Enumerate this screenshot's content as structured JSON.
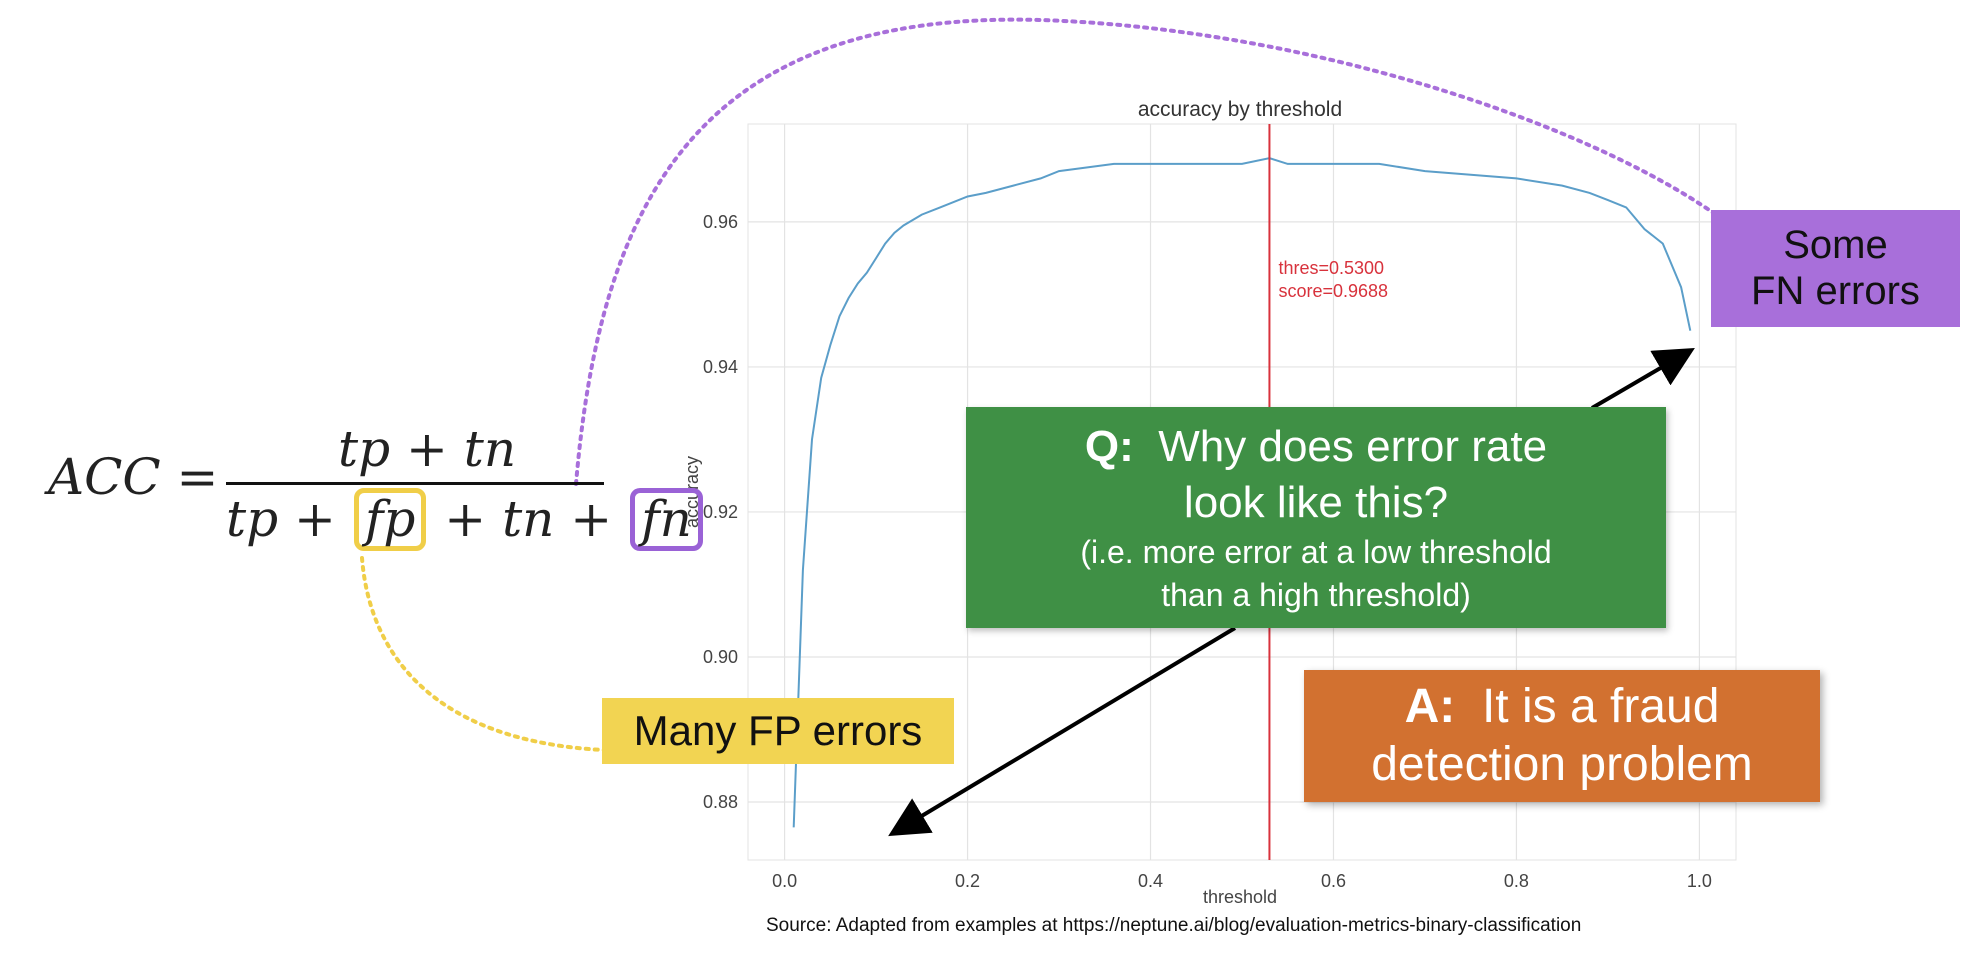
{
  "formula": {
    "lhs": "ACC",
    "equals": "=",
    "numerator": "tp + tn",
    "den_tp": "tp",
    "den_fp": "fp",
    "den_tn": "tn",
    "den_fn": "fn",
    "plus": "+"
  },
  "callouts": {
    "fp": "Many FP errors",
    "fn_line1": "Some",
    "fn_line2": "FN errors",
    "q_label": "Q:",
    "q_line1": "Why does error rate",
    "q_line2": "look like this?",
    "q_sub1": "(i.e. more error at a low threshold",
    "q_sub2": "than a high threshold)",
    "a_label": "A:",
    "a_line1": "It is a fraud",
    "a_line2": "detection problem"
  },
  "source": {
    "label": "Source",
    "text": ": Adapted from examples at https://neptune.ai/blog/evaluation-metrics-binary-classification"
  },
  "colors": {
    "line": "#5b9ec9",
    "threshold_line": "#d8323c",
    "fp_accent": "#f0ce48",
    "fn_accent": "#a86fda"
  },
  "chart_data": {
    "type": "line",
    "title": "accuracy by threshold",
    "xlabel": "threshold",
    "ylabel": "accuracy",
    "xlim": [
      -0.04,
      1.04
    ],
    "ylim": [
      0.872,
      0.9735
    ],
    "xticks": [
      0.0,
      0.2,
      0.4,
      0.6,
      0.8,
      1.0
    ],
    "xtick_labels": [
      "0.0",
      "0.2",
      "0.4",
      "0.6",
      "0.8",
      "1.0"
    ],
    "yticks": [
      0.88,
      0.9,
      0.92,
      0.94,
      0.96
    ],
    "ytick_labels": [
      "0.88",
      "0.90",
      "0.92",
      "0.94",
      "0.96"
    ],
    "grid": true,
    "series": [
      {
        "x": [
          0.01,
          0.02,
          0.03,
          0.04,
          0.05,
          0.06,
          0.07,
          0.08,
          0.09,
          0.1,
          0.11,
          0.12,
          0.13,
          0.15,
          0.17,
          0.2,
          0.22,
          0.25,
          0.28,
          0.3,
          0.33,
          0.36,
          0.4,
          0.45,
          0.5,
          0.53,
          0.55,
          0.6,
          0.65,
          0.7,
          0.75,
          0.8,
          0.85,
          0.88,
          0.9,
          0.92,
          0.94,
          0.96,
          0.98,
          0.99
        ],
        "y": [
          0.8765,
          0.912,
          0.93,
          0.9385,
          0.943,
          0.947,
          0.9495,
          0.9515,
          0.953,
          0.955,
          0.957,
          0.9585,
          0.9595,
          0.961,
          0.962,
          0.9635,
          0.964,
          0.965,
          0.966,
          0.967,
          0.9675,
          0.968,
          0.968,
          0.968,
          0.968,
          0.9688,
          0.968,
          0.968,
          0.968,
          0.967,
          0.9665,
          0.966,
          0.965,
          0.964,
          0.963,
          0.962,
          0.959,
          0.957,
          0.951,
          0.945
        ]
      }
    ],
    "threshold_marker": {
      "x": 0.53,
      "label1": "thres=0.5300",
      "label2": "score=0.9688"
    }
  }
}
